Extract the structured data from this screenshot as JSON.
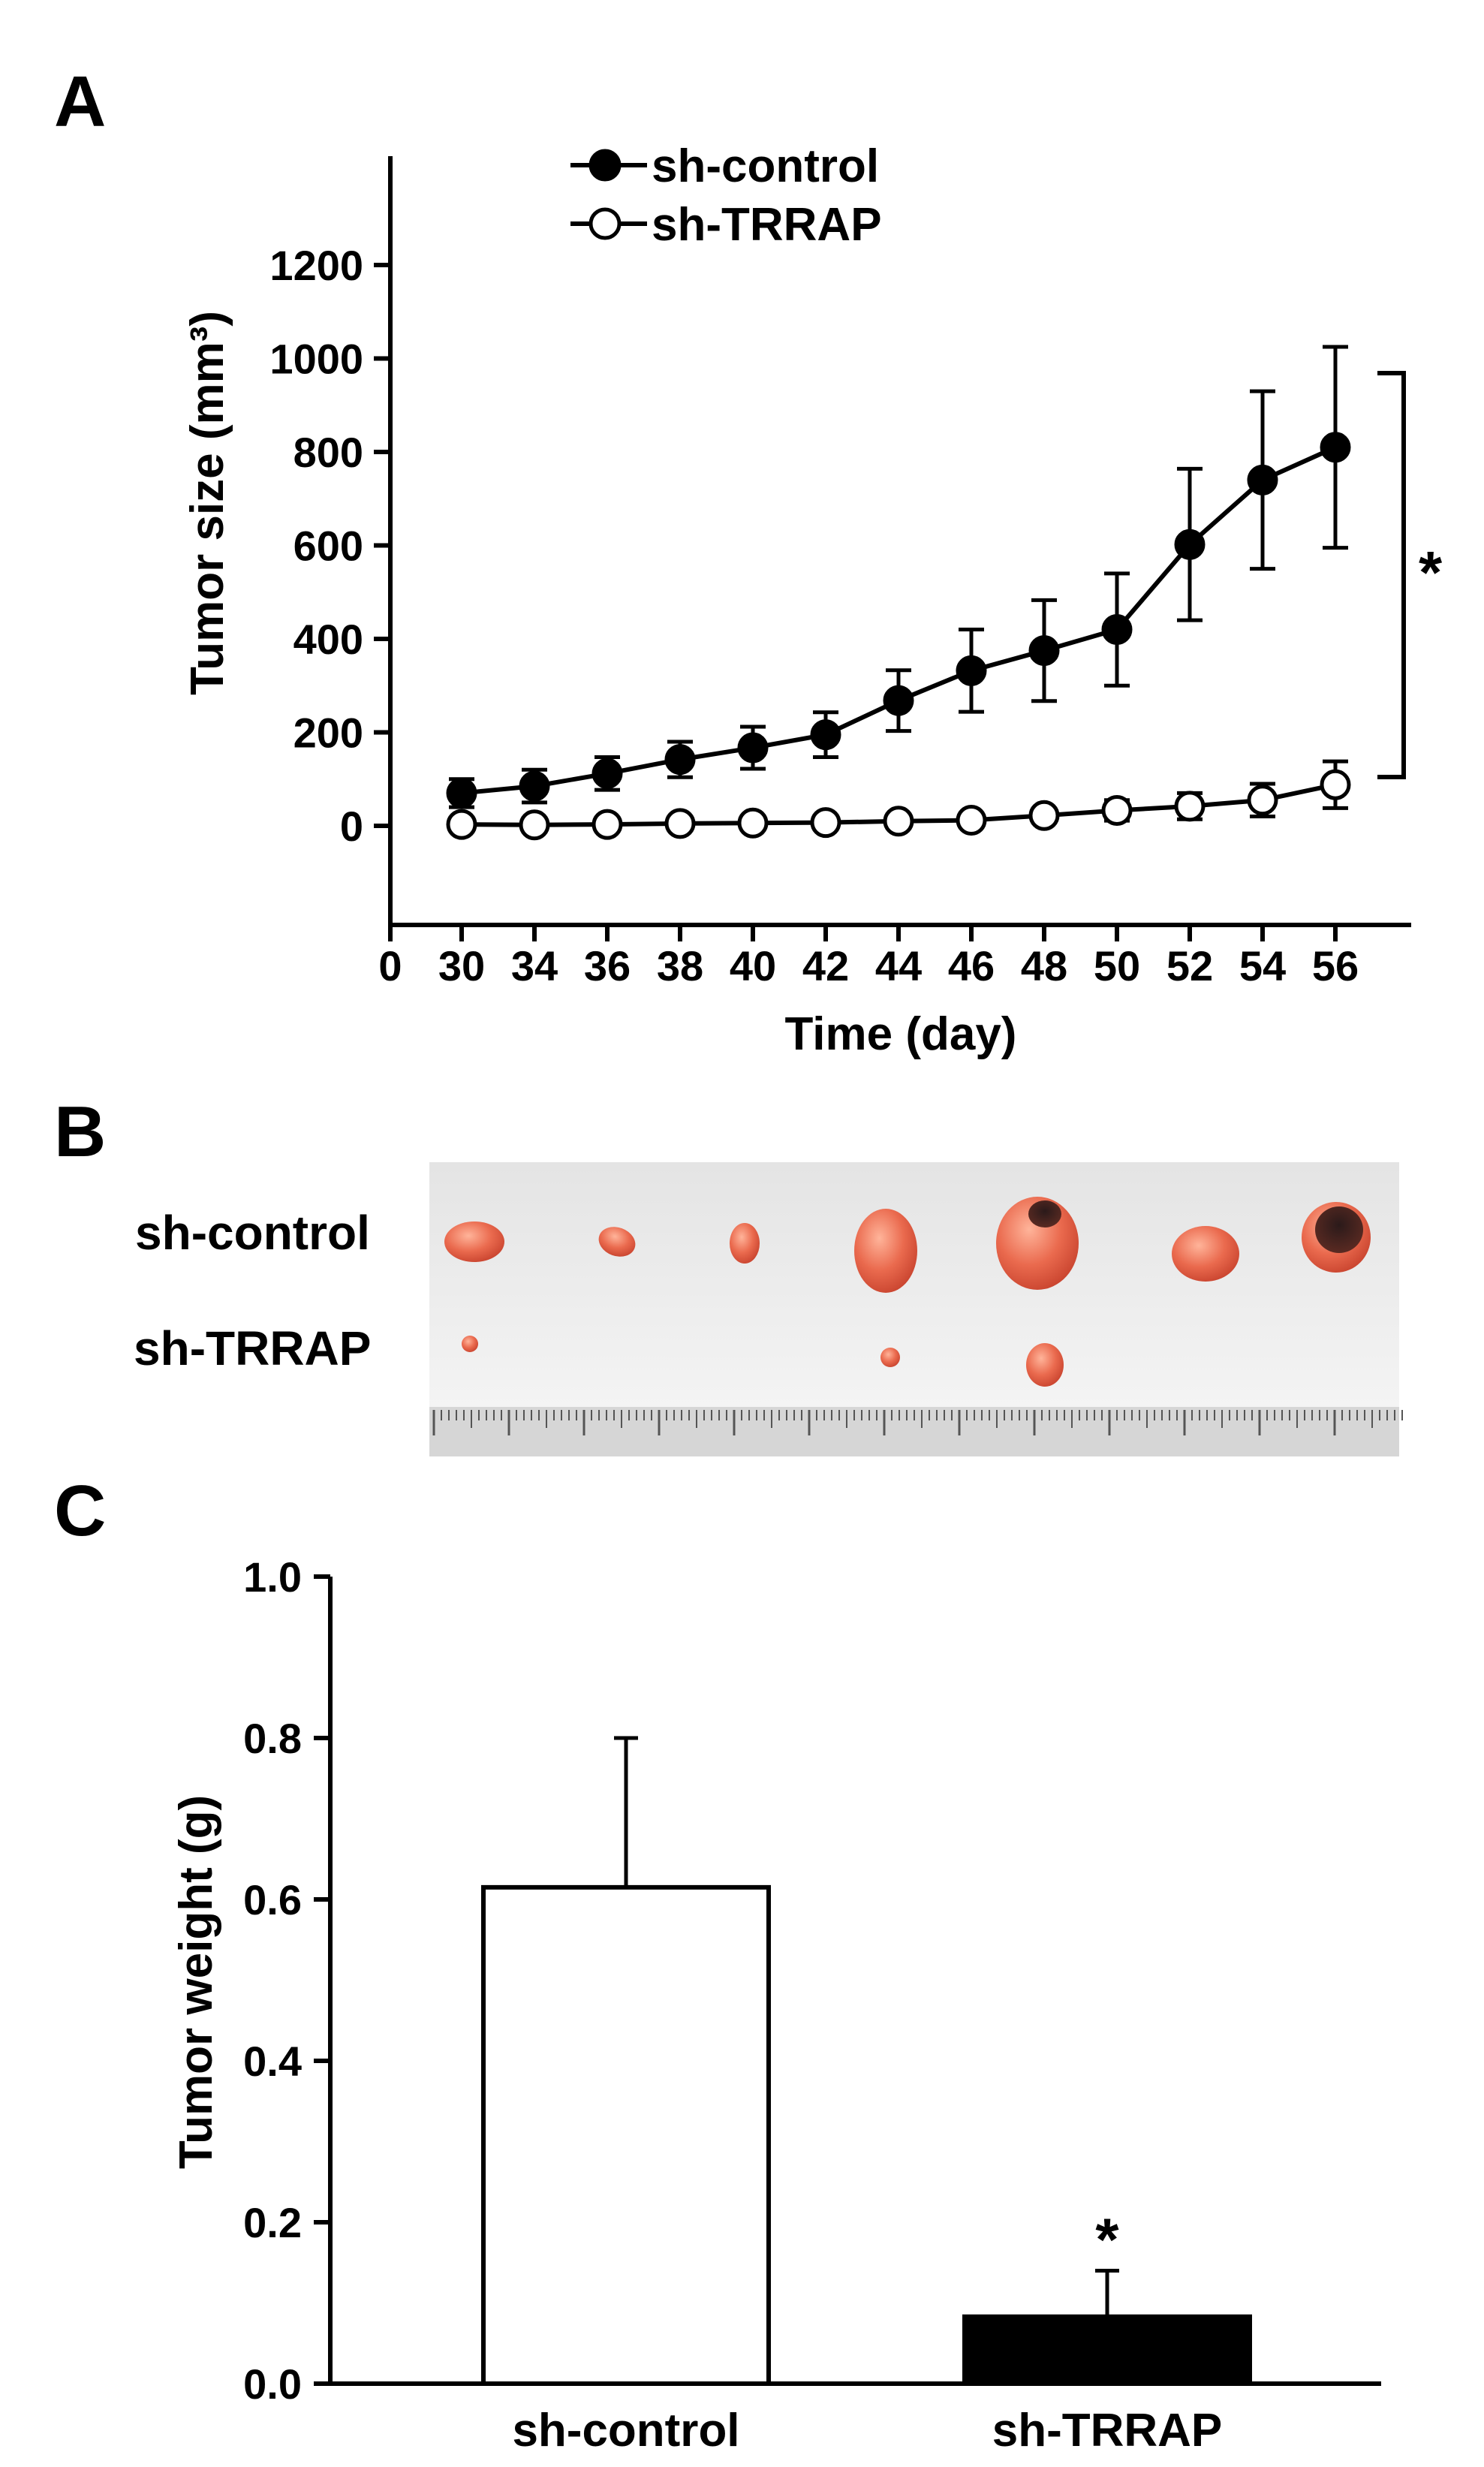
{
  "panels": {
    "a": {
      "letter": "A"
    },
    "b": {
      "letter": "B",
      "row_labels": [
        "sh-control",
        "sh-TRRAP"
      ]
    },
    "c": {
      "letter": "C"
    }
  },
  "chart_data": [
    {
      "type": "line",
      "panel": "A",
      "xlabel": "Time (day)",
      "ylabel": "Tumor size (mm³)",
      "x_tick_labels": [
        "0",
        "30",
        "34",
        "36",
        "38",
        "40",
        "42",
        "44",
        "46",
        "48",
        "50",
        "52",
        "54",
        "56"
      ],
      "y_ticks": [
        0,
        200,
        400,
        600,
        800,
        1000,
        1200
      ],
      "ylim": [
        -180,
        1200
      ],
      "legend_position": "top-left",
      "significance_marker": "*",
      "series": [
        {
          "name": "sh-control",
          "marker": "filled-circle",
          "values": [
            70,
            85,
            112,
            142,
            167,
            195,
            268,
            332,
            375,
            420,
            602,
            740,
            810
          ],
          "errors": [
            30,
            35,
            35,
            38,
            45,
            48,
            65,
            88,
            108,
            120,
            162,
            190,
            215
          ]
        },
        {
          "name": "sh-TRRAP",
          "marker": "open-circle",
          "values": [
            3,
            2,
            3,
            5,
            6,
            7,
            10,
            12,
            22,
            33,
            42,
            55,
            88
          ],
          "errors": [
            5,
            5,
            5,
            5,
            5,
            5,
            6,
            8,
            15,
            22,
            28,
            35,
            50
          ]
        }
      ]
    },
    {
      "type": "bar",
      "panel": "C",
      "ylabel": "Tumor weight (g)",
      "categories": [
        "sh-control",
        "sh-TRRAP"
      ],
      "values": [
        0.615,
        0.083
      ],
      "errors": [
        0.185,
        0.057
      ],
      "fills": [
        "#ffffff",
        "#000000"
      ],
      "y_tick_labels": [
        "0.0",
        "0.2",
        "0.4",
        "0.6",
        "0.8",
        "1.0"
      ],
      "ylim": [
        0,
        1.0
      ],
      "significance_marker": "*"
    }
  ]
}
